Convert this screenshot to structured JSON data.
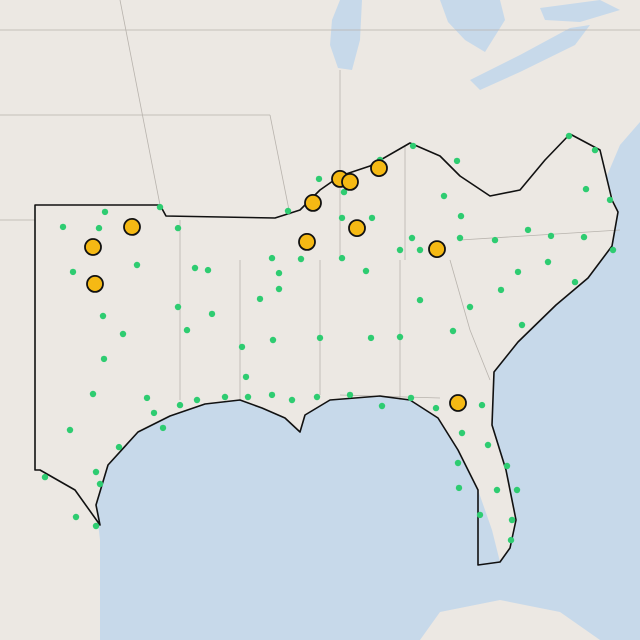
{
  "map": {
    "colors": {
      "site": "#2ecc71",
      "highlight": "#f5b914"
    },
    "highlights": [
      {
        "lon": -98.15,
        "lat": 36.27
      },
      {
        "lon": -100.1,
        "lat": 35.6
      },
      {
        "lon": -100.0,
        "lat": 34.37
      },
      {
        "lon": -89.1,
        "lat": 37.07
      },
      {
        "lon": -87.75,
        "lat": 37.87
      },
      {
        "lon": -87.25,
        "lat": 37.77
      },
      {
        "lon": -85.8,
        "lat": 38.23
      },
      {
        "lon": -89.4,
        "lat": 35.77
      },
      {
        "lon": -86.9,
        "lat": 36.23
      },
      {
        "lon": -82.9,
        "lat": 35.53
      },
      {
        "lon": -81.85,
        "lat": 30.4
      }
    ],
    "points": [
      {
        "lon": -101.6,
        "lat": 36.27
      },
      {
        "lon": -99.5,
        "lat": 36.77
      },
      {
        "lon": -96.75,
        "lat": 36.93
      },
      {
        "lon": -95.85,
        "lat": 36.23
      },
      {
        "lon": -97.9,
        "lat": 35.0
      },
      {
        "lon": -101.1,
        "lat": 34.77
      },
      {
        "lon": -99.8,
        "lat": 36.23
      },
      {
        "lon": -99.6,
        "lat": 33.3
      },
      {
        "lon": -98.6,
        "lat": 32.7
      },
      {
        "lon": -99.55,
        "lat": 31.87
      },
      {
        "lon": -95.85,
        "lat": 33.6
      },
      {
        "lon": -95.4,
        "lat": 32.83
      },
      {
        "lon": -94.15,
        "lat": 33.37
      },
      {
        "lon": -95.0,
        "lat": 34.9
      },
      {
        "lon": -91.75,
        "lat": 33.87
      },
      {
        "lon": -91.15,
        "lat": 35.23
      },
      {
        "lon": -89.7,
        "lat": 35.2
      },
      {
        "lon": -90.8,
        "lat": 34.73
      },
      {
        "lon": -87.65,
        "lat": 35.23
      },
      {
        "lon": -87.65,
        "lat": 36.57
      },
      {
        "lon": -86.15,
        "lat": 36.57
      },
      {
        "lon": -87.55,
        "lat": 37.43
      },
      {
        "lon": -84.1,
        "lat": 38.97
      },
      {
        "lon": -81.9,
        "lat": 38.47
      },
      {
        "lon": -82.55,
        "lat": 37.3
      },
      {
        "lon": -81.7,
        "lat": 36.63
      },
      {
        "lon": -76.3,
        "lat": 39.3
      },
      {
        "lon": -75.0,
        "lat": 38.83
      },
      {
        "lon": -75.45,
        "lat": 37.53
      },
      {
        "lon": -74.25,
        "lat": 37.17
      },
      {
        "lon": -78.35,
        "lat": 36.17
      },
      {
        "lon": -77.2,
        "lat": 35.97
      },
      {
        "lon": -75.55,
        "lat": 35.93
      },
      {
        "lon": -74.1,
        "lat": 35.5
      },
      {
        "lon": -80.0,
        "lat": 35.83
      },
      {
        "lon": -78.85,
        "lat": 34.77
      },
      {
        "lon": -77.35,
        "lat": 35.1
      },
      {
        "lon": -76.0,
        "lat": 34.43
      },
      {
        "lon": -79.7,
        "lat": 34.17
      },
      {
        "lon": -78.65,
        "lat": 33.0
      },
      {
        "lon": -81.25,
        "lat": 33.6
      },
      {
        "lon": -83.75,
        "lat": 33.83
      },
      {
        "lon": -82.1,
        "lat": 32.8
      },
      {
        "lon": -84.75,
        "lat": 32.6
      },
      {
        "lon": -86.2,
        "lat": 32.57
      },
      {
        "lon": -88.75,
        "lat": 32.57
      },
      {
        "lon": -91.1,
        "lat": 32.5
      },
      {
        "lon": -92.65,
        "lat": 32.27
      },
      {
        "lon": -94.35,
        "lat": 34.83
      },
      {
        "lon": -92.45,
        "lat": 31.27
      },
      {
        "lon": -91.15,
        "lat": 30.67
      },
      {
        "lon": -92.35,
        "lat": 30.6
      },
      {
        "lon": -90.15,
        "lat": 30.5
      },
      {
        "lon": -88.9,
        "lat": 30.6
      },
      {
        "lon": -87.25,
        "lat": 30.67
      },
      {
        "lon": -85.65,
        "lat": 30.3
      },
      {
        "lon": -84.2,
        "lat": 30.57
      },
      {
        "lon": -82.95,
        "lat": 30.23
      },
      {
        "lon": -80.65,
        "lat": 30.33
      },
      {
        "lon": -81.65,
        "lat": 29.4
      },
      {
        "lon": -80.35,
        "lat": 29.0
      },
      {
        "lon": -79.4,
        "lat": 28.3
      },
      {
        "lon": -81.85,
        "lat": 28.4
      },
      {
        "lon": -81.8,
        "lat": 27.57
      },
      {
        "lon": -79.9,
        "lat": 27.5
      },
      {
        "lon": -78.9,
        "lat": 27.5
      },
      {
        "lon": -80.75,
        "lat": 26.67
      },
      {
        "lon": -79.15,
        "lat": 26.5
      },
      {
        "lon": -79.2,
        "lat": 25.83
      },
      {
        "lon": -100.1,
        "lat": 30.7
      },
      {
        "lon": -101.25,
        "lat": 29.5
      },
      {
        "lon": -97.4,
        "lat": 30.57
      },
      {
        "lon": -97.05,
        "lat": 30.07
      },
      {
        "lon": -96.6,
        "lat": 29.57
      },
      {
        "lon": -95.75,
        "lat": 30.33
      },
      {
        "lon": -94.9,
        "lat": 30.5
      },
      {
        "lon": -93.5,
        "lat": 30.6
      },
      {
        "lon": -98.8,
        "lat": 28.93
      },
      {
        "lon": -99.95,
        "lat": 28.1
      },
      {
        "lon": -102.5,
        "lat": 27.93
      },
      {
        "lon": -99.75,
        "lat": 27.7
      },
      {
        "lon": -100.95,
        "lat": 26.6
      },
      {
        "lon": -99.95,
        "lat": 26.3
      },
      {
        "lon": -85.75,
        "lat": 38.5
      },
      {
        "lon": -88.8,
        "lat": 37.87
      },
      {
        "lon": -90.35,
        "lat": 36.8
      },
      {
        "lon": -90.8,
        "lat": 34.2
      },
      {
        "lon": -86.45,
        "lat": 34.8
      },
      {
        "lon": -84.15,
        "lat": 35.9
      },
      {
        "lon": -81.75,
        "lat": 35.9
      },
      {
        "lon": -84.75,
        "lat": 35.5
      },
      {
        "lon": -83.75,
        "lat": 35.5
      }
    ]
  }
}
